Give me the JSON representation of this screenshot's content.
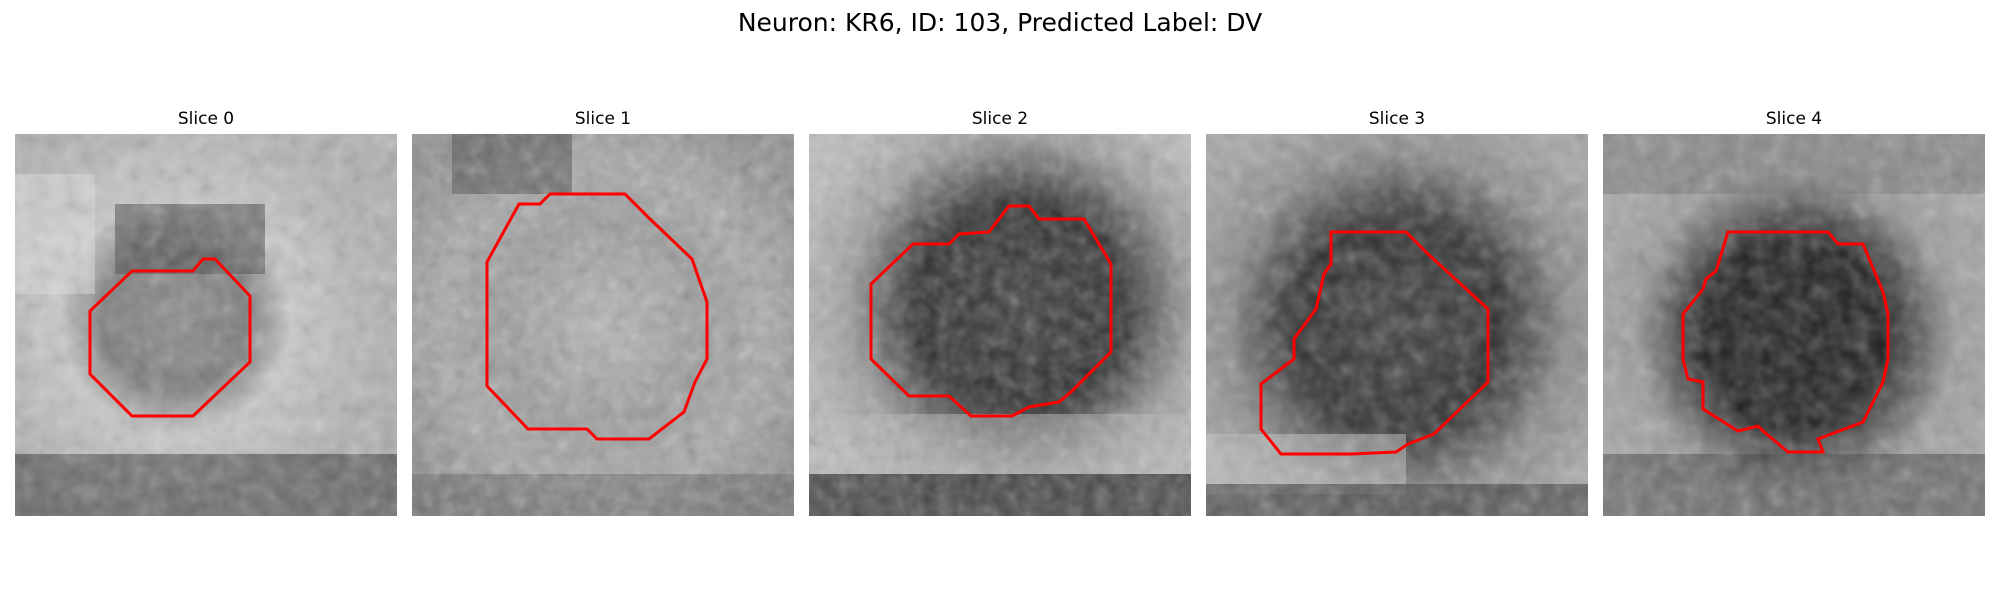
{
  "figure": {
    "title": "Neuron: KR6, ID: 103, Predicted Label: DV"
  },
  "colors": {
    "outline": "#ff0000",
    "background": "#ffffff"
  },
  "panels": [
    {
      "title": "Slice 0",
      "image": "grayscale-microscopy-slice",
      "overlay": "red-neuron-outline"
    },
    {
      "title": "Slice 1",
      "image": "grayscale-microscopy-slice",
      "overlay": "red-neuron-outline"
    },
    {
      "title": "Slice 2",
      "image": "grayscale-microscopy-slice",
      "overlay": "red-neuron-outline"
    },
    {
      "title": "Slice 3",
      "image": "grayscale-microscopy-slice",
      "overlay": "red-neuron-outline"
    },
    {
      "title": "Slice 4",
      "image": "grayscale-microscopy-slice",
      "overlay": "red-neuron-outline"
    }
  ]
}
